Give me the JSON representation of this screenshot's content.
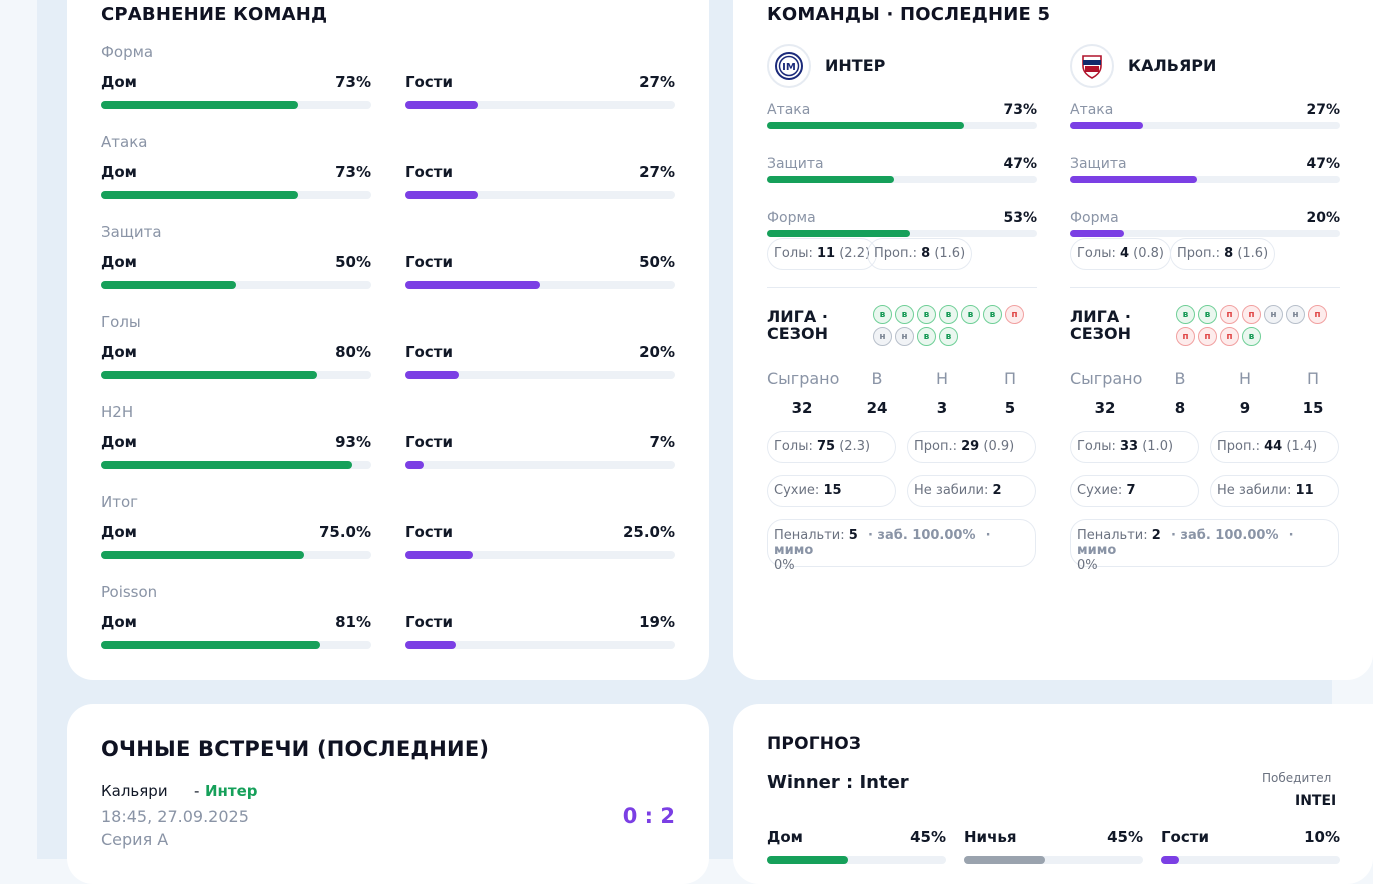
{
  "colors": {
    "home": "#16a05a",
    "away": "#7b3fe4",
    "draw": "#9aa3ae",
    "score": "#7b3fe4",
    "winner_team": "#16a05a"
  },
  "comparison": {
    "title": "СРАВНЕНИЕ КОМАНД",
    "home_label": "Дом",
    "away_label": "Гости",
    "rows": [
      {
        "label": "Форма",
        "home": "73%",
        "away": "27%",
        "home_frac": 0.73,
        "away_frac": 0.27
      },
      {
        "label": "Атака",
        "home": "73%",
        "away": "27%",
        "home_frac": 0.73,
        "away_frac": 0.27
      },
      {
        "label": "Защита",
        "home": "50%",
        "away": "50%",
        "home_frac": 0.5,
        "away_frac": 0.5
      },
      {
        "label": "Голы",
        "home": "80%",
        "away": "20%",
        "home_frac": 0.8,
        "away_frac": 0.2
      },
      {
        "label": "H2H",
        "home": "93%",
        "away": "7%",
        "home_frac": 0.93,
        "away_frac": 0.07
      },
      {
        "label": "Итог",
        "home": "75.0%",
        "away": "25.0%",
        "home_frac": 0.75,
        "away_frac": 0.25
      },
      {
        "label": "Poisson",
        "home": "81%",
        "away": "19%",
        "home_frac": 0.81,
        "away_frac": 0.19
      }
    ]
  },
  "last5": {
    "title": "КОМАНДЫ · ПОСЛЕДНИЕ 5",
    "teams": [
      {
        "name": "ИНТЕР",
        "logo": "inter-logo",
        "metrics": [
          {
            "label": "Атака",
            "value": "73%",
            "frac": 0.73
          },
          {
            "label": "Защита",
            "value": "47%",
            "frac": 0.47
          },
          {
            "label": "Форма",
            "value": "53%",
            "frac": 0.53
          }
        ],
        "goals_label": "Голы:",
        "goals": "11",
        "goals_avg": "(2.2)",
        "conceded_label": "Проп.:",
        "conceded": "8",
        "conceded_avg": "(1.6)",
        "league_title_1": "ЛИГА ·",
        "league_title_2": "СЕЗОН",
        "form": [
          "в",
          "в",
          "в",
          "в",
          "в",
          "в",
          "п",
          "н",
          "н",
          "в",
          "в"
        ],
        "played_label": "Сыграно",
        "w_label": "В",
        "d_label": "Н",
        "l_label": "П",
        "played": "32",
        "w": "24",
        "d": "3",
        "l": "5",
        "season_goals_label": "Голы:",
        "season_goals": "75",
        "season_goals_avg": "(2.3)",
        "season_conceded_label": "Проп.:",
        "season_conceded": "29",
        "season_conceded_avg": "(0.9)",
        "clean_label": "Сухие:",
        "clean": "15",
        "failed_label": "Не забили:",
        "failed": "2",
        "pen_label": "Пенальти:",
        "pen": "5",
        "pen_scored": "· заб. 100.00%",
        "pen_missed": "· мимо",
        "pen_missed_pct": "0%"
      },
      {
        "name": "КАЛЬЯРИ",
        "logo": "cagliari-logo",
        "metrics": [
          {
            "label": "Атака",
            "value": "27%",
            "frac": 0.27
          },
          {
            "label": "Защита",
            "value": "47%",
            "frac": 0.47
          },
          {
            "label": "Форма",
            "value": "20%",
            "frac": 0.2
          }
        ],
        "goals_label": "Голы:",
        "goals": "4",
        "goals_avg": "(0.8)",
        "conceded_label": "Проп.:",
        "conceded": "8",
        "conceded_avg": "(1.6)",
        "league_title_1": "ЛИГА ·",
        "league_title_2": "СЕЗОН",
        "form": [
          "в",
          "в",
          "п",
          "п",
          "н",
          "н",
          "п",
          "п",
          "п",
          "п",
          "в"
        ],
        "played_label": "Сыграно",
        "w_label": "В",
        "d_label": "Н",
        "l_label": "П",
        "played": "32",
        "w": "8",
        "d": "9",
        "l": "15",
        "season_goals_label": "Голы:",
        "season_goals": "33",
        "season_goals_avg": "(1.0)",
        "season_conceded_label": "Проп.:",
        "season_conceded": "44",
        "season_conceded_avg": "(1.4)",
        "clean_label": "Сухие:",
        "clean": "7",
        "failed_label": "Не забили:",
        "failed": "11",
        "pen_label": "Пенальти:",
        "pen": "2",
        "pen_scored": "· заб. 100.00%",
        "pen_missed": "· мимо",
        "pen_missed_pct": "0%"
      }
    ]
  },
  "h2h": {
    "title": "ОЧНЫЕ ВСТРЕЧИ (ПОСЛЕДНИЕ)",
    "match": {
      "home": "Кальяри",
      "dash": "-",
      "away": "Интер",
      "datetime": "18:45, 27.09.2025",
      "league": "Серия А",
      "score": "0 : 2"
    }
  },
  "forecast": {
    "title": "ПРОГНОЗ",
    "winner_text": "Winner : Inter",
    "winner_label": "Победител",
    "winner_team": "INTEI",
    "cols": [
      {
        "label": "Дом",
        "value": "45%",
        "frac": 0.45
      },
      {
        "label": "Ничья",
        "value": "45%",
        "frac": 0.45
      },
      {
        "label": "Гости",
        "value": "10%",
        "frac": 0.1
      }
    ]
  }
}
